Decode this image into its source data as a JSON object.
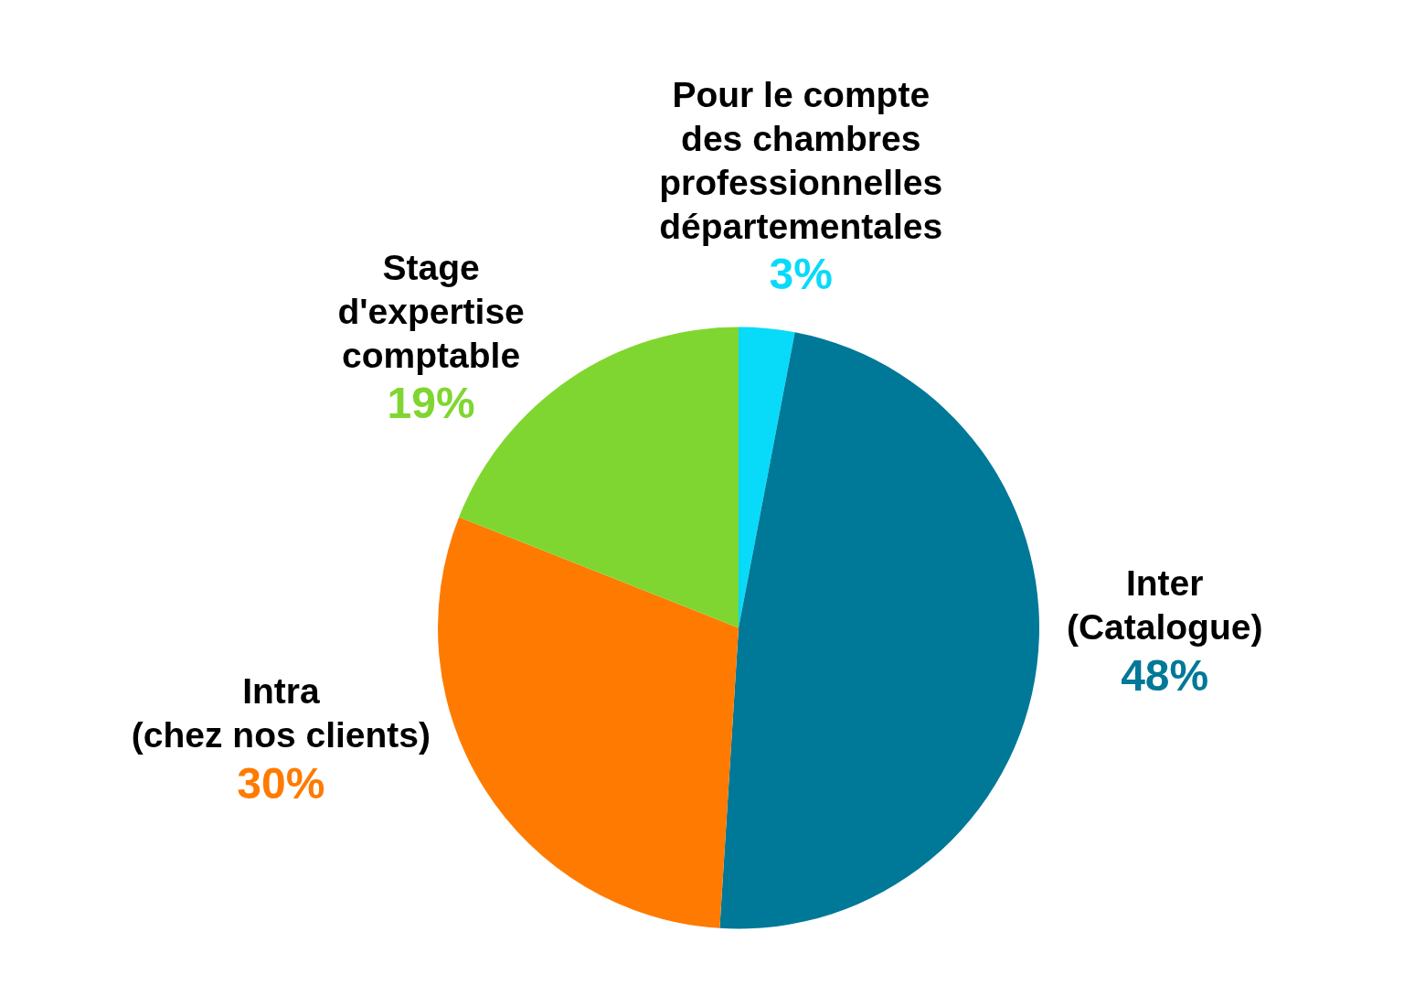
{
  "chart_data": {
    "type": "pie",
    "categories": [
      "Pour le compte\ndes chambres\nprofessionnelles\ndépartementales",
      "Inter\n(Catalogue)",
      "Intra\n(chez nos clients)",
      "Stage\nd'expertise\ncomptable"
    ],
    "values": [
      3,
      48,
      30,
      19
    ],
    "colors": [
      "#08dafa",
      "#007898",
      "#ff7a00",
      "#80d630"
    ],
    "value_labels": [
      "3%",
      "48%",
      "30%",
      "19%"
    ]
  }
}
